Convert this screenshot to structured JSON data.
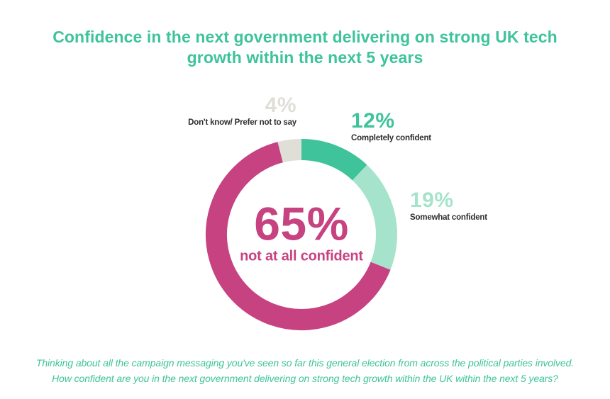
{
  "title": {
    "full": "Confidence in the next government delivering on strong UK tech growth within the next 5 years",
    "lines": [
      "Confidence in the next government delivering on strong UK tech",
      "growth within the next 5 years"
    ]
  },
  "footnote": {
    "full": "Thinking about all the campaign messaging you've seen so far this general election from across the political parties involved. How confident are you in the next government delivering on strong tech growth within the UK within the next 5 years?",
    "lines": [
      "Thinking about all the campaign messaging you've seen so far this general election from across the political parties involved.",
      "How confident are you in the next government delivering on strong tech growth within the UK within the next 5 years?"
    ]
  },
  "colors": {
    "accent_teal": "#3ec39b",
    "mint": "#a5e3cc",
    "magenta": "#c64280",
    "light_gray": "#e0dfd7",
    "dark_text": "#2d2d2d",
    "background": "#ffffff"
  },
  "chart_data": {
    "type": "pie",
    "subtype": "donut",
    "title": "Confidence in the next government delivering on strong UK tech growth within the next 5 years",
    "direction": "clockwise",
    "start_angle_deg": 0,
    "legend_position": "callout-labels",
    "segments": [
      {
        "label": "Completely confident",
        "value": 12,
        "pct_label": "12%",
        "color": "#3ec39b"
      },
      {
        "label": "Somewhat confident",
        "value": 19,
        "pct_label": "19%",
        "color": "#a5e3cc"
      },
      {
        "label": "not at all confident",
        "value": 65,
        "pct_label": "65%",
        "color": "#c64280"
      },
      {
        "label": "Don't know/ Prefer not to say",
        "value": 4,
        "pct_label": "4%",
        "color": "#e0dfd7"
      }
    ],
    "center_label": {
      "pct": "65%",
      "text": "not at all confident",
      "color": "#c64280"
    }
  }
}
